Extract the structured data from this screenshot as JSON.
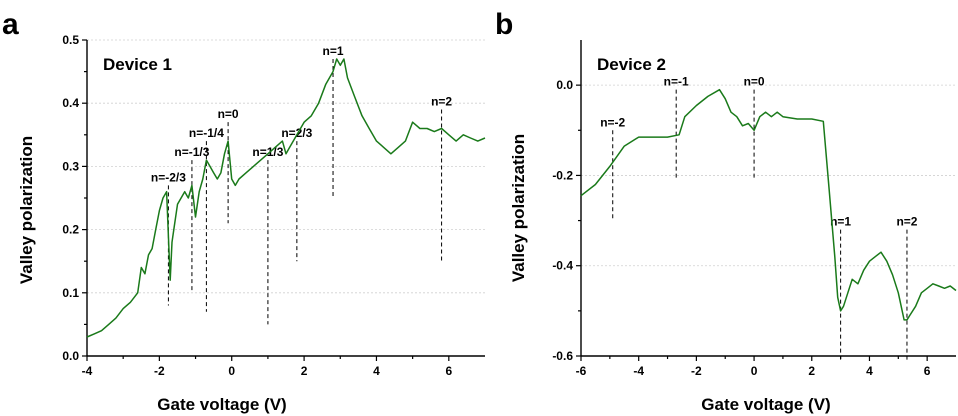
{
  "panels": [
    {
      "letter": "a",
      "device": "Device 1"
    },
    {
      "letter": "b",
      "device": "Device 2"
    }
  ],
  "colors": {
    "series": "#1a7a1a",
    "axis": "#000000",
    "grid": "#d0d0d0"
  },
  "chart_data": [
    {
      "type": "line",
      "title": "Device 1",
      "xlabel": "Gate voltage (V)",
      "ylabel": "Valley polarization",
      "xlim": [
        -4,
        7
      ],
      "ylim": [
        0.0,
        0.5
      ],
      "xticks": [
        -4,
        -2,
        0,
        2,
        4,
        6
      ],
      "xtick_labels": [
        "-4",
        "-2",
        "0",
        "2",
        "4",
        "6"
      ],
      "yticks": [
        0.0,
        0.1,
        0.2,
        0.3,
        0.4,
        0.5
      ],
      "ytick_labels": [
        "0.0",
        "0.1",
        "0.2",
        "0.3",
        "0.4",
        "0.5"
      ],
      "grid": "horizontal dotted",
      "series": [
        {
          "color": "#1a7a1a",
          "x": [
            -4.0,
            -3.8,
            -3.6,
            -3.4,
            -3.2,
            -3.0,
            -2.8,
            -2.6,
            -2.5,
            -2.4,
            -2.3,
            -2.2,
            -2.1,
            -2.0,
            -1.9,
            -1.8,
            -1.7,
            -1.65,
            -1.6,
            -1.5,
            -1.4,
            -1.3,
            -1.2,
            -1.1,
            -1.0,
            -0.9,
            -0.8,
            -0.7,
            -0.6,
            -0.5,
            -0.4,
            -0.3,
            -0.2,
            -0.1,
            0.0,
            0.1,
            0.2,
            0.4,
            0.6,
            0.8,
            1.0,
            1.2,
            1.4,
            1.5,
            1.6,
            1.8,
            2.0,
            2.2,
            2.4,
            2.6,
            2.8,
            2.9,
            3.0,
            3.1,
            3.2,
            3.4,
            3.6,
            3.8,
            4.0,
            4.2,
            4.4,
            4.6,
            4.8,
            5.0,
            5.2,
            5.4,
            5.6,
            5.8,
            6.0,
            6.2,
            6.4,
            6.6,
            6.8,
            7.0
          ],
          "y": [
            0.03,
            0.035,
            0.04,
            0.05,
            0.06,
            0.075,
            0.085,
            0.1,
            0.14,
            0.13,
            0.16,
            0.17,
            0.2,
            0.23,
            0.25,
            0.26,
            0.12,
            0.18,
            0.2,
            0.24,
            0.25,
            0.26,
            0.25,
            0.27,
            0.22,
            0.26,
            0.28,
            0.31,
            0.3,
            0.29,
            0.28,
            0.29,
            0.32,
            0.34,
            0.28,
            0.27,
            0.28,
            0.29,
            0.3,
            0.31,
            0.32,
            0.33,
            0.34,
            0.32,
            0.33,
            0.35,
            0.37,
            0.38,
            0.4,
            0.43,
            0.45,
            0.47,
            0.46,
            0.47,
            0.44,
            0.41,
            0.38,
            0.36,
            0.34,
            0.33,
            0.32,
            0.33,
            0.34,
            0.37,
            0.36,
            0.36,
            0.355,
            0.36,
            0.35,
            0.34,
            0.35,
            0.345,
            0.34,
            0.345
          ]
        }
      ],
      "annotations": [
        {
          "label": "n=-2/3",
          "x": -1.75,
          "y_top": 0.27,
          "y_bottom": 0.08
        },
        {
          "label": "n=-1/3",
          "x": -1.1,
          "y_top": 0.31,
          "y_bottom": 0.1
        },
        {
          "label": "n=-1/4",
          "x": -0.7,
          "y_top": 0.34,
          "y_bottom": 0.07
        },
        {
          "label": "n=0",
          "x": -0.1,
          "y_top": 0.37,
          "y_bottom": 0.21
        },
        {
          "label": "n=1/3",
          "x": 1.0,
          "y_top": 0.31,
          "y_bottom": 0.05
        },
        {
          "label": "n=2/3",
          "x": 1.8,
          "y_top": 0.34,
          "y_bottom": 0.15
        },
        {
          "label": "n=1",
          "x": 2.8,
          "y_top": 0.47,
          "y_bottom": 0.25
        },
        {
          "label": "n=2",
          "x": 5.8,
          "y_top": 0.39,
          "y_bottom": 0.15
        }
      ]
    },
    {
      "type": "line",
      "title": "Device 2",
      "xlabel": "Gate voltage (V)",
      "ylabel": "Valley polarization",
      "xlim": [
        -6,
        7
      ],
      "ylim": [
        -0.6,
        0.1
      ],
      "xticks": [
        -6,
        -4,
        -2,
        0,
        2,
        4,
        6
      ],
      "xtick_labels": [
        "-6",
        "-4",
        "-2",
        "0",
        "2",
        "4",
        "6"
      ],
      "yticks": [
        -0.6,
        -0.4,
        -0.2,
        0.0
      ],
      "ytick_labels": [
        "-0.6",
        "-0.4",
        "-0.2",
        "0.0"
      ],
      "grid": "horizontal dotted",
      "series": [
        {
          "color": "#1a7a1a",
          "x": [
            -6.0,
            -5.5,
            -5.0,
            -4.5,
            -4.0,
            -3.5,
            -3.0,
            -2.6,
            -2.4,
            -2.0,
            -1.6,
            -1.2,
            -1.0,
            -0.8,
            -0.6,
            -0.4,
            -0.2,
            0.0,
            0.2,
            0.4,
            0.6,
            0.8,
            1.0,
            1.5,
            2.0,
            2.4,
            2.6,
            2.8,
            2.9,
            3.0,
            3.1,
            3.2,
            3.4,
            3.6,
            3.8,
            4.0,
            4.2,
            4.4,
            4.6,
            4.8,
            5.0,
            5.2,
            5.3,
            5.4,
            5.6,
            5.8,
            6.0,
            6.2,
            6.4,
            6.6,
            6.8,
            7.0
          ],
          "y": [
            -0.245,
            -0.22,
            -0.18,
            -0.135,
            -0.115,
            -0.115,
            -0.115,
            -0.11,
            -0.07,
            -0.045,
            -0.025,
            -0.01,
            -0.03,
            -0.06,
            -0.07,
            -0.09,
            -0.085,
            -0.1,
            -0.07,
            -0.06,
            -0.07,
            -0.06,
            -0.07,
            -0.075,
            -0.075,
            -0.08,
            -0.23,
            -0.38,
            -0.47,
            -0.5,
            -0.49,
            -0.47,
            -0.43,
            -0.44,
            -0.41,
            -0.39,
            -0.38,
            -0.37,
            -0.39,
            -0.42,
            -0.46,
            -0.52,
            -0.52,
            -0.51,
            -0.49,
            -0.46,
            -0.45,
            -0.44,
            -0.445,
            -0.45,
            -0.445,
            -0.455
          ]
        }
      ],
      "annotations": [
        {
          "label": "n=-2",
          "x": -4.9,
          "y_top": -0.1,
          "y_bottom": -0.3
        },
        {
          "label": "n=-1",
          "x": -2.7,
          "y_top": -0.01,
          "y_bottom": -0.21
        },
        {
          "label": "n=0",
          "x": 0.0,
          "y_top": -0.01,
          "y_bottom": -0.21
        },
        {
          "label": "n=1",
          "x": 3.0,
          "y_top": -0.32,
          "y_bottom": -0.61
        },
        {
          "label": "n=2",
          "x": 5.3,
          "y_top": -0.32,
          "y_bottom": -0.61
        }
      ]
    }
  ]
}
